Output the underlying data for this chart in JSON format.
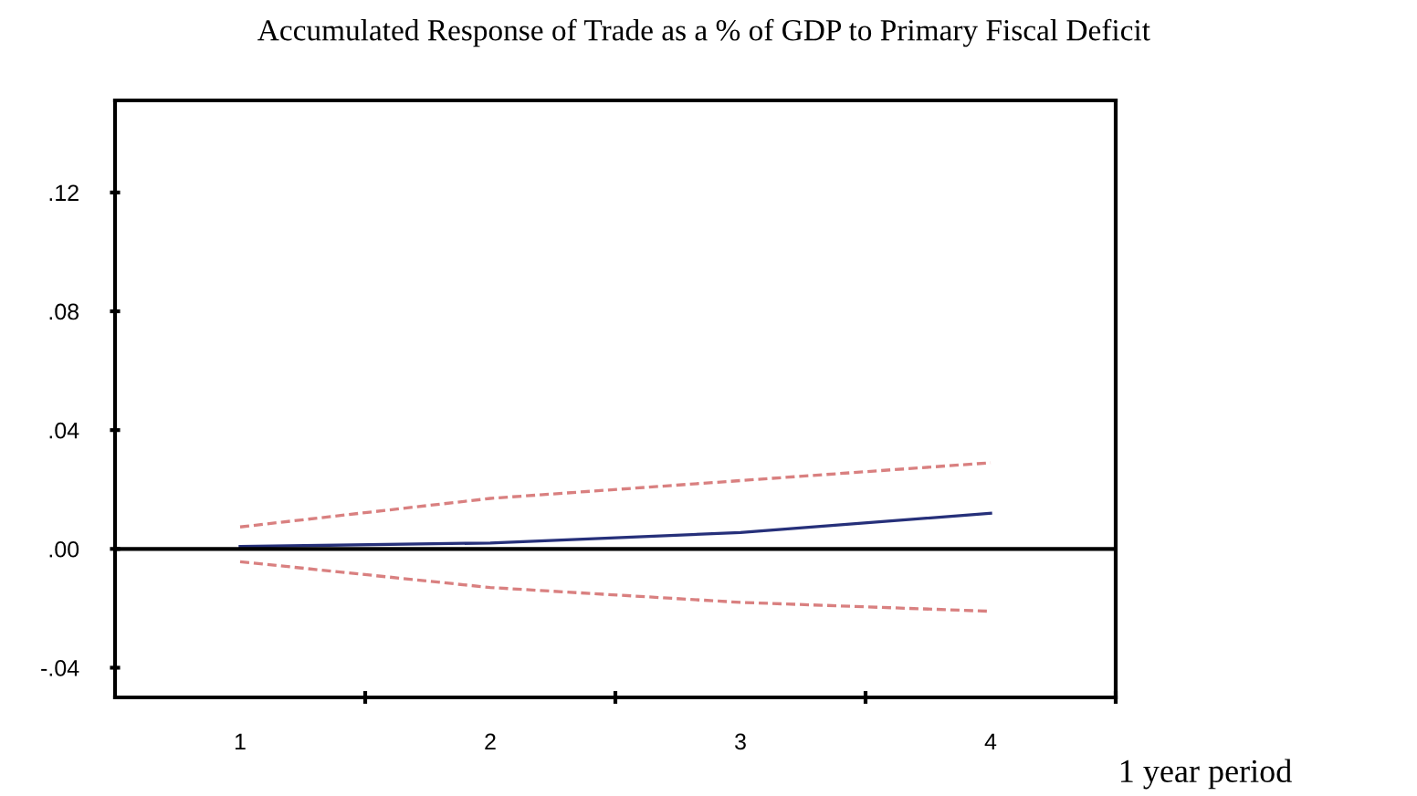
{
  "chart_data": {
    "type": "line",
    "title": "Accumulated Response of Trade as a % of GDP to Primary Fiscal Deficit",
    "xlabel": "1 year period",
    "categories": [
      "1",
      "2",
      "3",
      "4"
    ],
    "series": [
      {
        "color": "#d98080",
        "line_style": "dashed",
        "values": [
          0.0074,
          0.017,
          0.023,
          0.029
        ]
      },
      {
        "color": "#26307a",
        "line_style": "solid",
        "values": [
          0.0008,
          0.002,
          0.0055,
          0.012
        ]
      },
      {
        "color": "#d98080",
        "line_style": "dashed",
        "values": [
          -0.0043,
          -0.013,
          -0.018,
          -0.021
        ]
      }
    ],
    "ylim": [
      -0.05,
      0.151
    ],
    "yticks": [
      {
        "value": -0.04,
        "label": "-.04"
      },
      {
        "value": 0.0,
        "label": ".00"
      },
      {
        "value": 0.04,
        "label": ".04"
      },
      {
        "value": 0.08,
        "label": ".08"
      },
      {
        "value": 0.12,
        "label": ".12"
      }
    ],
    "ref_lines": [
      {
        "axis": "y",
        "value": 0,
        "color": "#000000",
        "line_style": "solid"
      }
    ],
    "grid": false,
    "legend": false
  }
}
